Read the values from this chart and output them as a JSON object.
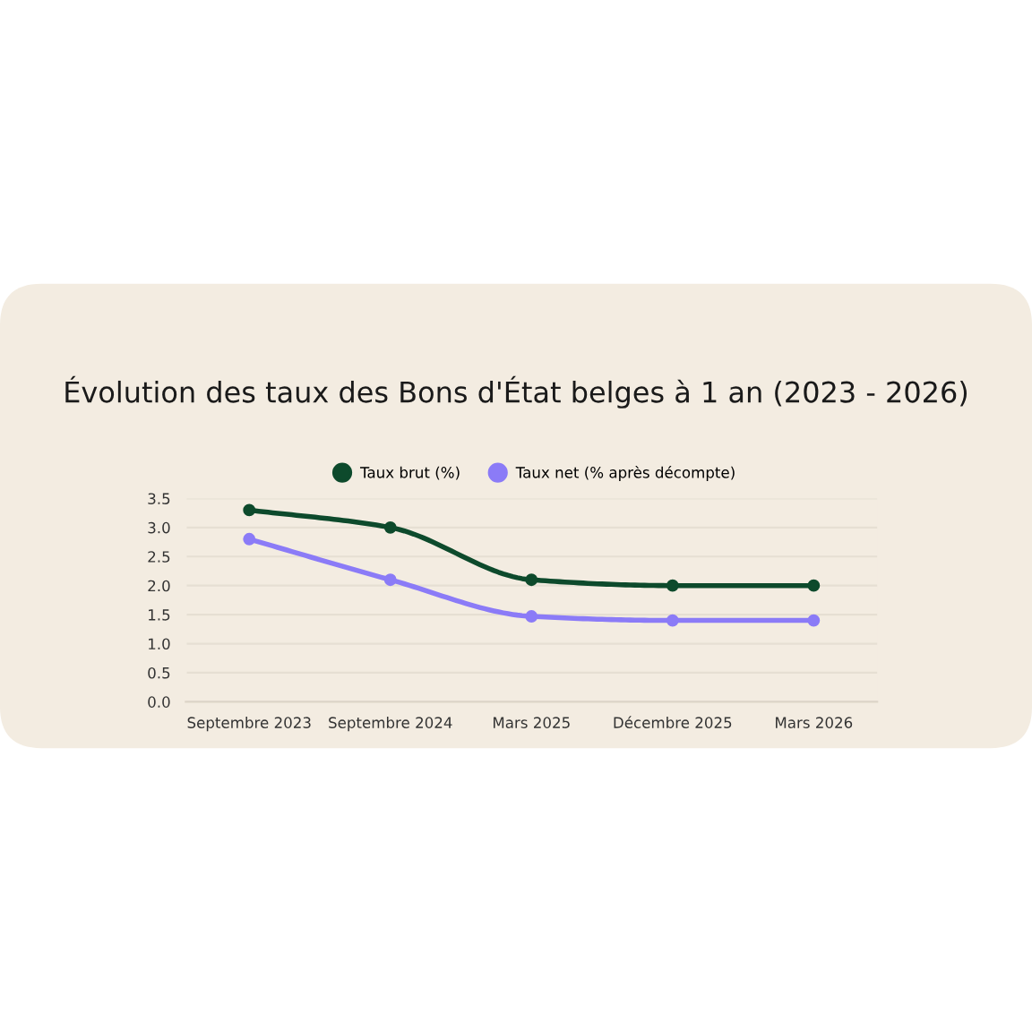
{
  "chart_data": {
    "type": "line",
    "title": "Évolution des taux des Bons d'État belges à 1 an (2023 - 2026)",
    "categories": [
      "Septembre 2023",
      "Septembre 2024",
      "Mars 2025",
      "Décembre 2025",
      "Mars 2026"
    ],
    "series": [
      {
        "name": "Taux brut (%)",
        "color": "#0d4a2c",
        "values": [
          3.3,
          3.0,
          2.1,
          2.0,
          2.0
        ]
      },
      {
        "name": "Taux net (% après décompte)",
        "color": "#8b7bf7",
        "values": [
          2.8,
          2.1,
          1.47,
          1.4,
          1.4
        ]
      }
    ],
    "ylim": [
      0,
      3.5
    ],
    "yticks": [
      {
        "value": 0,
        "label": "0.0"
      },
      {
        "value": 0.5,
        "label": "0.5"
      },
      {
        "value": 1,
        "label": "1.0"
      },
      {
        "value": 1.5,
        "label": "1.5"
      },
      {
        "value": 2,
        "label": "2.0"
      },
      {
        "value": 2.5,
        "label": "2.5"
      },
      {
        "value": 3,
        "label": "3.0"
      },
      {
        "value": 3.5,
        "label": "3.5"
      }
    ],
    "grid": "y",
    "legend": "top",
    "marker": "circle",
    "line_style": "solid"
  }
}
